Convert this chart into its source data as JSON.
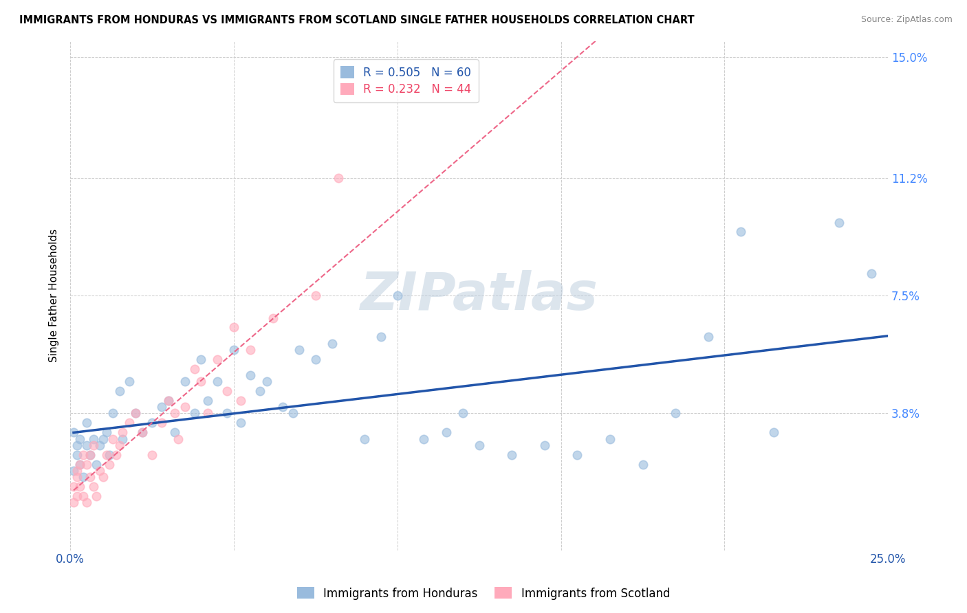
{
  "title": "IMMIGRANTS FROM HONDURAS VS IMMIGRANTS FROM SCOTLAND SINGLE FATHER HOUSEHOLDS CORRELATION CHART",
  "source": "Source: ZipAtlas.com",
  "ylabel": "Single Father Households",
  "xlabel": "",
  "xlim": [
    0.0,
    0.25
  ],
  "ylim": [
    -0.005,
    0.155
  ],
  "xtick_positions": [
    0.0,
    0.05,
    0.1,
    0.15,
    0.2,
    0.25
  ],
  "xticklabels": [
    "0.0%",
    "",
    "",
    "",
    "",
    "25.0%"
  ],
  "ytick_positions": [
    0.038,
    0.075,
    0.112,
    0.15
  ],
  "yticklabels": [
    "3.8%",
    "7.5%",
    "11.2%",
    "15.0%"
  ],
  "R_honduras": 0.505,
  "N_honduras": 60,
  "R_scotland": 0.232,
  "N_scotland": 44,
  "color_honduras": "#99BBDD",
  "color_scotland": "#FFAABB",
  "trendline_honduras_color": "#2255AA",
  "trendline_scotland_color": "#EE6688",
  "watermark": "ZIPatlas",
  "honduras_x": [
    0.001,
    0.001,
    0.002,
    0.002,
    0.003,
    0.003,
    0.004,
    0.005,
    0.005,
    0.006,
    0.007,
    0.008,
    0.009,
    0.01,
    0.011,
    0.012,
    0.013,
    0.015,
    0.016,
    0.018,
    0.02,
    0.022,
    0.025,
    0.028,
    0.03,
    0.032,
    0.035,
    0.038,
    0.04,
    0.042,
    0.045,
    0.048,
    0.05,
    0.052,
    0.055,
    0.058,
    0.06,
    0.065,
    0.068,
    0.07,
    0.075,
    0.08,
    0.09,
    0.095,
    0.1,
    0.108,
    0.115,
    0.12,
    0.125,
    0.135,
    0.145,
    0.155,
    0.165,
    0.175,
    0.185,
    0.195,
    0.205,
    0.215,
    0.235,
    0.245
  ],
  "honduras_y": [
    0.032,
    0.02,
    0.025,
    0.028,
    0.03,
    0.022,
    0.018,
    0.035,
    0.028,
    0.025,
    0.03,
    0.022,
    0.028,
    0.03,
    0.032,
    0.025,
    0.038,
    0.045,
    0.03,
    0.048,
    0.038,
    0.032,
    0.035,
    0.04,
    0.042,
    0.032,
    0.048,
    0.038,
    0.055,
    0.042,
    0.048,
    0.038,
    0.058,
    0.035,
    0.05,
    0.045,
    0.048,
    0.04,
    0.038,
    0.058,
    0.055,
    0.06,
    0.03,
    0.062,
    0.075,
    0.03,
    0.032,
    0.038,
    0.028,
    0.025,
    0.028,
    0.025,
    0.03,
    0.022,
    0.038,
    0.062,
    0.095,
    0.032,
    0.098,
    0.082
  ],
  "scotland_x": [
    0.001,
    0.001,
    0.002,
    0.002,
    0.002,
    0.003,
    0.003,
    0.004,
    0.004,
    0.005,
    0.005,
    0.006,
    0.006,
    0.007,
    0.007,
    0.008,
    0.009,
    0.01,
    0.011,
    0.012,
    0.013,
    0.014,
    0.015,
    0.016,
    0.018,
    0.02,
    0.022,
    0.025,
    0.028,
    0.03,
    0.032,
    0.033,
    0.035,
    0.038,
    0.04,
    0.042,
    0.045,
    0.048,
    0.05,
    0.052,
    0.055,
    0.062,
    0.075,
    0.082
  ],
  "scotland_y": [
    0.01,
    0.015,
    0.012,
    0.018,
    0.02,
    0.015,
    0.022,
    0.012,
    0.025,
    0.01,
    0.022,
    0.018,
    0.025,
    0.015,
    0.028,
    0.012,
    0.02,
    0.018,
    0.025,
    0.022,
    0.03,
    0.025,
    0.028,
    0.032,
    0.035,
    0.038,
    0.032,
    0.025,
    0.035,
    0.042,
    0.038,
    0.03,
    0.04,
    0.052,
    0.048,
    0.038,
    0.055,
    0.045,
    0.065,
    0.042,
    0.058,
    0.068,
    0.075,
    0.112
  ]
}
